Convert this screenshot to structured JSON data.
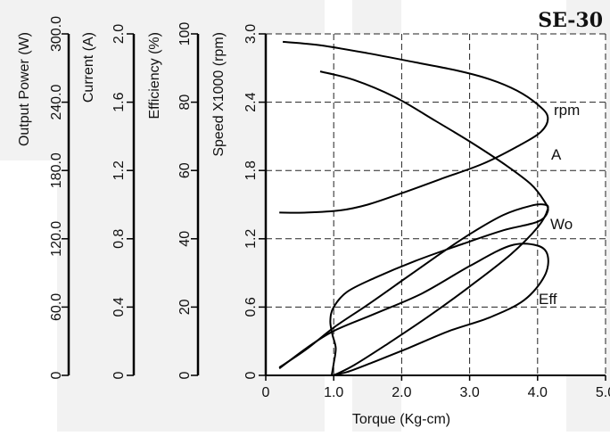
{
  "chart_data": {
    "type": "line",
    "title": "SE-30",
    "xlabel": "Torque (Kg-cm)",
    "x_ticks": [
      "0",
      "1.0",
      "2.0",
      "3.0",
      "4.0",
      "5.0"
    ],
    "xlim": [
      0,
      5
    ],
    "grid": true,
    "axes": [
      {
        "label": "Output Power  (W)",
        "ticks": [
          "0",
          "60.0",
          "120.0",
          "180.0",
          "240.0",
          "300.0"
        ],
        "range": [
          0,
          300
        ]
      },
      {
        "label": "Current  (A)",
        "ticks": [
          "0",
          "0.4",
          "0.8",
          "1.2",
          "1.6",
          "2.0"
        ],
        "range": [
          0,
          2.0
        ]
      },
      {
        "label": "Efficiency (%)",
        "ticks": [
          "0",
          "20",
          "40",
          "60",
          "80",
          "100"
        ],
        "range": [
          0,
          100
        ]
      },
      {
        "label": "Speed X1000 (rpm)",
        "ticks": [
          "0",
          "0.6",
          "1.2",
          "1.8",
          "2.4",
          "3.0"
        ],
        "range": [
          0,
          3.0
        ]
      }
    ],
    "series": [
      {
        "name": "rpm",
        "x": [
          0.25,
          0.8,
          1.5,
          2.2,
          2.8,
          3.3,
          3.7,
          4.0,
          4.15,
          4.05,
          3.7,
          3.2,
          2.6,
          2.0,
          1.5,
          1.1,
          0.6,
          0.2
        ],
        "y": [
          2.93,
          2.9,
          2.83,
          2.75,
          2.68,
          2.6,
          2.5,
          2.38,
          2.27,
          2.14,
          2.01,
          1.86,
          1.73,
          1.6,
          1.5,
          1.45,
          1.43,
          1.43
        ]
      },
      {
        "name": "A",
        "x": [
          0.8,
          1.3,
          1.9,
          2.5,
          3.0,
          3.5,
          3.9,
          4.1,
          4.15,
          4.0,
          3.5,
          2.9,
          2.2,
          1.6,
          1.2,
          1.0,
          0.95,
          0.98,
          1.03,
          1.0,
          0.97
        ],
        "y": [
          1.78,
          1.73,
          1.63,
          1.49,
          1.37,
          1.24,
          1.12,
          1.02,
          0.96,
          0.9,
          0.85,
          0.77,
          0.67,
          0.57,
          0.49,
          0.4,
          0.32,
          0.24,
          0.16,
          0.07,
          0
        ]
      },
      {
        "name": "Wo",
        "x": [
          0.2,
          0.6,
          1.0,
          1.5,
          2.0,
          2.5,
          3.0,
          3.5,
          3.9,
          4.1,
          4.15,
          4.0,
          3.6,
          3.0,
          2.4,
          1.8,
          1.3,
          1.0
        ],
        "y": [
          7,
          23,
          42,
          62,
          83,
          104,
          124,
          141,
          149,
          150,
          146,
          130,
          106,
          78,
          52,
          28,
          9,
          0
        ]
      },
      {
        "name": "Eff",
        "x": [
          0.2,
          0.6,
          1.0,
          1.6,
          2.3,
          3.0,
          3.6,
          4.0,
          4.15,
          4.1,
          3.8,
          3.3,
          2.7,
          2.1,
          1.6,
          1.2,
          0.95
        ],
        "y": [
          2,
          8,
          13,
          18,
          24,
          32,
          38,
          38,
          35,
          29,
          22,
          17,
          13,
          8,
          4,
          1,
          0
        ]
      }
    ],
    "series_label_text": [
      "rpm",
      "A",
      "Wo",
      "Eff"
    ]
  }
}
